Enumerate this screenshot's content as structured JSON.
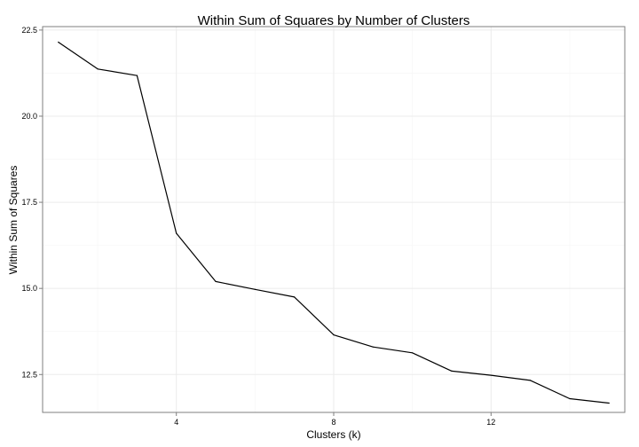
{
  "chart_data": {
    "type": "line",
    "title": "Within Sum of Squares by Number of Clusters",
    "xlabel": "Clusters (k)",
    "ylabel": "Within Sum of Squares",
    "xlim": [
      0.6,
      15.4
    ],
    "ylim": [
      11.4,
      22.6
    ],
    "x_ticks": [
      4,
      8,
      12
    ],
    "x_tick_labels": [
      "4",
      "8",
      "12"
    ],
    "x_minor_ticks": [
      2,
      6,
      10,
      14
    ],
    "y_ticks": [
      12.5,
      15.0,
      17.5,
      20.0,
      22.5
    ],
    "y_tick_labels": [
      "12.5",
      "15.0",
      "17.5",
      "20.0",
      "22.5"
    ],
    "y_minor_ticks": [
      13.75,
      16.25,
      18.75,
      21.25
    ],
    "grid": true,
    "legend": "none",
    "colors": {
      "line": "#000000",
      "panel_border": "#7f7f7f",
      "grid_major": "#ebebeb",
      "grid_minor": "#f5f5f5"
    },
    "series": [
      {
        "x": [
          1,
          2,
          3,
          4,
          5,
          6,
          7,
          8,
          9,
          10,
          11,
          12,
          13,
          14,
          15
        ],
        "values": [
          22.15,
          21.37,
          21.18,
          16.6,
          15.2,
          14.97,
          14.75,
          13.65,
          13.3,
          13.13,
          12.6,
          12.48,
          12.33,
          11.8,
          11.67
        ]
      }
    ]
  }
}
